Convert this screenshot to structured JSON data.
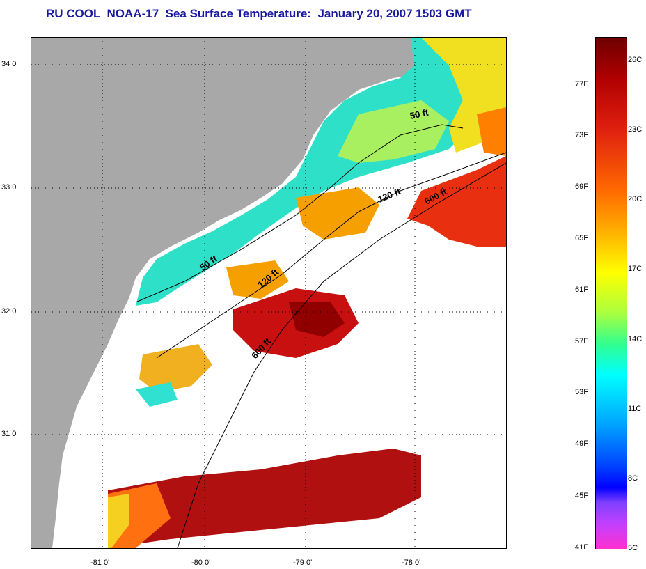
{
  "title": "RU COOL  NOAA-17  Sea Surface Temperature:  January 20, 2007 1503 GMT",
  "map": {
    "lat_labels": [
      "34 0'",
      "33 0'",
      "32 0'",
      "31 0'"
    ],
    "lon_labels": [
      "-81 0'",
      "-80 0'",
      "-79 0'",
      "-78 0'"
    ],
    "contour_labels": [
      "50 ft",
      "120 ft",
      "600 ft",
      "50 ft",
      "120 ft",
      "600 ft"
    ],
    "colors": {
      "land": "#a8a8a8",
      "no_data": "#ffffff",
      "frame": "#000000"
    }
  },
  "colorbar": {
    "fahrenheit_labels": [
      "77F",
      "73F",
      "69F",
      "65F",
      "61F",
      "57F",
      "53F",
      "49F",
      "45F",
      "41F"
    ],
    "celsius_labels": [
      "26C",
      "23C",
      "20C",
      "17C",
      "14C",
      "11C",
      "8C",
      "5C"
    ]
  }
}
